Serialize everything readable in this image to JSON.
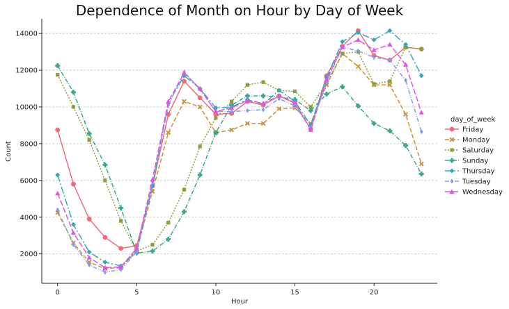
{
  "chart_data": {
    "type": "line",
    "title": "Dependence of Month on Hour by Day of Week",
    "xlabel": "Hour",
    "ylabel": "Count",
    "xlim": [
      -1,
      24
    ],
    "ylim": [
      400,
      14800
    ],
    "xticks": [
      0,
      5,
      10,
      15,
      20
    ],
    "yticks": [
      2000,
      4000,
      6000,
      8000,
      10000,
      12000,
      14000
    ],
    "grid": "horizontal dashed",
    "legend_title": "day_of_week",
    "legend_position": "right",
    "x": [
      0,
      1,
      2,
      3,
      4,
      5,
      6,
      7,
      8,
      9,
      10,
      11,
      12,
      13,
      14,
      15,
      16,
      17,
      18,
      19,
      20,
      21,
      22,
      23
    ],
    "series": [
      {
        "name": "Friday",
        "color": "#f06b79",
        "dash": "",
        "marker": "circle",
        "values": [
          8750,
          5800,
          3900,
          2900,
          2300,
          2450,
          5700,
          9600,
          11400,
          10500,
          9600,
          9650,
          10300,
          10100,
          10600,
          10200,
          8800,
          11700,
          13300,
          14150,
          12800,
          12550,
          13250,
          13150
        ]
      },
      {
        "name": "Monday",
        "color": "#cc8f3a",
        "dash": "6,3",
        "marker": "x",
        "values": [
          4250,
          2600,
          1550,
          1200,
          1250,
          2200,
          5400,
          8600,
          10300,
          10000,
          8600,
          8750,
          9100,
          9100,
          9900,
          9950,
          9100,
          11200,
          12900,
          12200,
          11200,
          11200,
          9600,
          6900
        ]
      },
      {
        "name": "Saturday",
        "color": "#8fa03a",
        "dash": "2,2",
        "marker": "square",
        "values": [
          11750,
          10000,
          8200,
          6000,
          3800,
          2150,
          2500,
          3700,
          5500,
          7850,
          9400,
          10300,
          11200,
          11350,
          10900,
          10850,
          10000,
          11300,
          12900,
          13000,
          11250,
          11400,
          13250,
          13150
        ]
      },
      {
        "name": "Sunday",
        "color": "#3aa78a",
        "dash": "6,2,1,2",
        "marker": "plus",
        "values": [
          12250,
          10800,
          8550,
          6850,
          4500,
          2050,
          2150,
          2800,
          4300,
          6300,
          8600,
          10100,
          10600,
          10600,
          10550,
          10400,
          9800,
          10700,
          11100,
          10050,
          9100,
          8700,
          7900,
          6350
        ]
      },
      {
        "name": "Thursday",
        "color": "#31a8b6",
        "dash": "10,3,2,3",
        "marker": "diamond",
        "values": [
          6300,
          3600,
          2100,
          1550,
          1350,
          2100,
          5700,
          10200,
          11700,
          11000,
          9950,
          10000,
          10400,
          10150,
          10900,
          10300,
          9000,
          11600,
          13550,
          14050,
          13650,
          14150,
          13400,
          11700
        ]
      },
      {
        "name": "Tuesday",
        "color": "#7d9cf0",
        "dash": "6,2,1,2,1,2",
        "marker": "thin-diamond",
        "values": [
          4400,
          2500,
          1400,
          1000,
          1150,
          2100,
          5900,
          10100,
          11900,
          10950,
          9750,
          9750,
          9800,
          9850,
          10450,
          10050,
          8850,
          11350,
          13250,
          13050,
          12700,
          12550,
          11450,
          8650
        ]
      },
      {
        "name": "Wednesday",
        "color": "#e551e8",
        "dash": "8,3",
        "marker": "triangle",
        "values": [
          5300,
          3150,
          1800,
          1250,
          1300,
          2300,
          6050,
          10300,
          11850,
          11000,
          9750,
          9950,
          10350,
          10200,
          10600,
          10250,
          8750,
          11500,
          13250,
          13650,
          13100,
          13400,
          12300,
          9700
        ]
      }
    ]
  }
}
